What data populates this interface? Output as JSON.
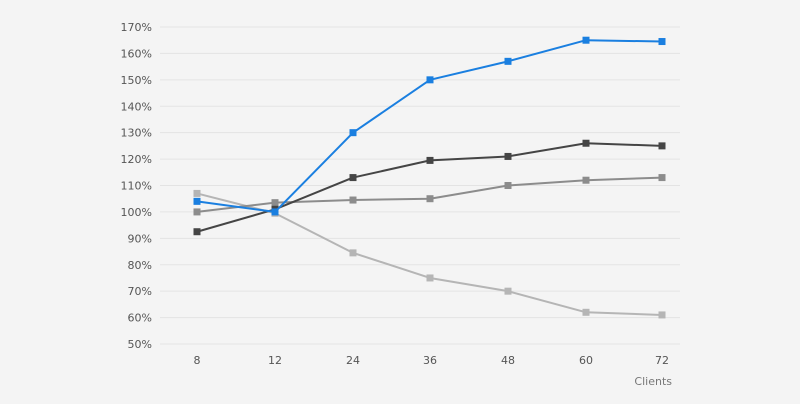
{
  "chart_data": {
    "type": "line",
    "title": "",
    "xlabel": "Clients",
    "ylabel": "",
    "categories": [
      "8",
      "12",
      "24",
      "36",
      "48",
      "60",
      "72"
    ],
    "y_ticks": [
      "50%",
      "60%",
      "70%",
      "80%",
      "90%",
      "100%",
      "110%",
      "120%",
      "130%",
      "140%",
      "150%",
      "160%",
      "170%"
    ],
    "ylim": [
      50,
      170
    ],
    "y_unit": "%",
    "grid": "horizontal",
    "marker": "square",
    "legend": "none",
    "series": [
      {
        "color": "#1a7fe0",
        "values": [
          104,
          100,
          130,
          150,
          157,
          165,
          164.5
        ]
      },
      {
        "color": "#454545",
        "values": [
          92.5,
          101,
          113,
          119.5,
          121,
          126,
          125
        ]
      },
      {
        "color": "#8c8c8c",
        "values": [
          100,
          103.5,
          104.5,
          105,
          110,
          112,
          113
        ]
      },
      {
        "color": "#b5b5b5",
        "values": [
          107,
          99.5,
          84.5,
          75,
          70,
          62,
          61
        ]
      }
    ]
  }
}
